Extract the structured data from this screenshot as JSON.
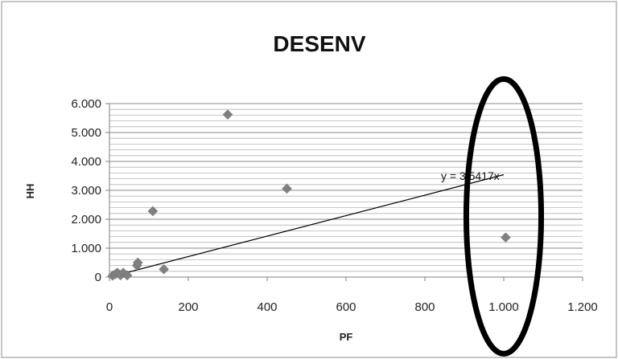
{
  "chart_data": {
    "type": "scatter",
    "title": "DESENV",
    "xlabel": "PF",
    "ylabel": "HH",
    "xlim": [
      0,
      1200
    ],
    "ylim": [
      0,
      6000
    ],
    "x_ticks": [
      0,
      200,
      400,
      600,
      800,
      1000,
      1200
    ],
    "x_tick_labels": [
      "0",
      "200",
      "400",
      "600",
      "800",
      "1.000",
      "1.200"
    ],
    "y_ticks": [
      0,
      1000,
      2000,
      3000,
      4000,
      5000,
      6000
    ],
    "y_tick_labels": [
      "0",
      "1.000",
      "2.000",
      "3.000",
      "4.000",
      "5.000",
      "6.000"
    ],
    "grid": "horizontal",
    "series": [
      {
        "marker": "diamond",
        "color": "#808080",
        "points": [
          {
            "x": 8,
            "y": 50
          },
          {
            "x": 15,
            "y": 100
          },
          {
            "x": 20,
            "y": 150
          },
          {
            "x": 28,
            "y": 60
          },
          {
            "x": 35,
            "y": 150
          },
          {
            "x": 45,
            "y": 60
          },
          {
            "x": 70,
            "y": 400
          },
          {
            "x": 72,
            "y": 500
          },
          {
            "x": 110,
            "y": 2280
          },
          {
            "x": 138,
            "y": 270
          },
          {
            "x": 300,
            "y": 5620
          },
          {
            "x": 450,
            "y": 3060
          },
          {
            "x": 1005,
            "y": 1370
          }
        ]
      }
    ],
    "trendline": {
      "equation_label": "y = 3,5417x",
      "slope": 3.5417,
      "x_range": [
        0,
        1000
      ],
      "color": "#000000"
    },
    "annotation": {
      "shape": "ellipse",
      "color": "#000000",
      "center": {
        "x": 1000,
        "y": 2100
      },
      "rx_data": 95,
      "ry_data": 4750
    }
  }
}
